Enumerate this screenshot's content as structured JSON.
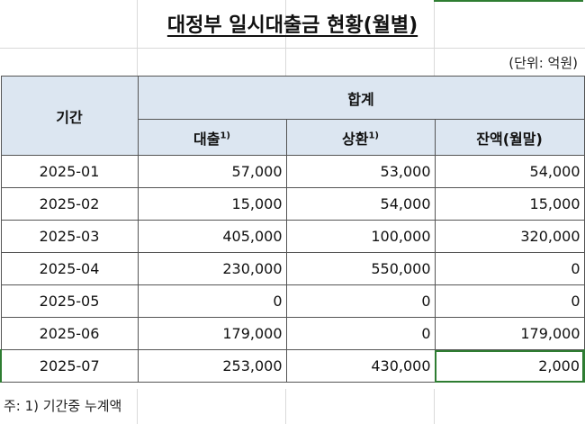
{
  "title": "대정부 일시대출금 현황(월별)",
  "unit": "(단위: 억원)",
  "header": {
    "period": "기간",
    "group": "합계",
    "col1": "대출",
    "col1_sup": "1)",
    "col2": "상환",
    "col2_sup": "1)",
    "col3": "잔액(월말)"
  },
  "rows": [
    {
      "period": "2025-01",
      "loan": "57,000",
      "repay": "53,000",
      "balance": "54,000"
    },
    {
      "period": "2025-02",
      "loan": "15,000",
      "repay": "54,000",
      "balance": "15,000"
    },
    {
      "period": "2025-03",
      "loan": "405,000",
      "repay": "100,000",
      "balance": "320,000"
    },
    {
      "period": "2025-04",
      "loan": "230,000",
      "repay": "550,000",
      "balance": "0"
    },
    {
      "period": "2025-05",
      "loan": "0",
      "repay": "0",
      "balance": "0"
    },
    {
      "period": "2025-06",
      "loan": "179,000",
      "repay": "0",
      "balance": "179,000"
    },
    {
      "period": "2025-07",
      "loan": "253,000",
      "repay": "430,000",
      "balance": "2,000"
    }
  ],
  "note": "주: 1) 기간중 누계액"
}
